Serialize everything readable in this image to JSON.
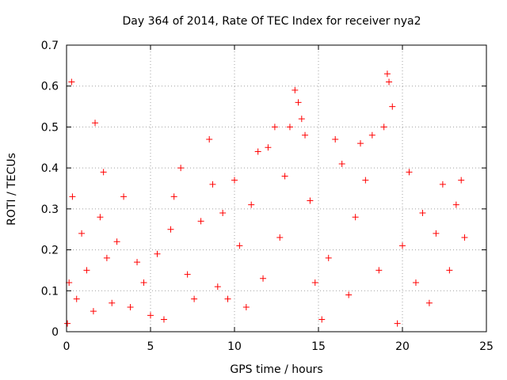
{
  "chart_data": {
    "type": "scatter",
    "title": "Day 364 of 2014, Rate Of TEC Index for receiver nya2",
    "xlabel": "GPS time / hours",
    "ylabel": "ROTI / TECUs",
    "xlim": [
      0,
      25
    ],
    "ylim": [
      0,
      0.7
    ],
    "xticks": [
      "0",
      "5",
      "10",
      "15",
      "20",
      "25"
    ],
    "yticks": [
      "0",
      "0.1",
      "0.2",
      "0.3",
      "0.4",
      "0.5",
      "0.6",
      "0.7"
    ],
    "grid": true,
    "marker": "+",
    "color": "#ff0000",
    "series": [
      {
        "x": [
          0.05,
          0.15,
          0.3,
          0.35,
          0.6,
          0.9,
          1.2,
          1.6,
          1.7,
          2.0,
          2.2,
          2.4,
          2.7,
          3.0,
          3.4,
          3.8,
          4.2,
          4.6,
          5.0,
          5.4,
          5.8,
          6.2,
          6.4,
          6.8,
          7.2,
          7.6,
          8.0,
          8.5,
          8.7,
          9.0,
          9.3,
          9.6,
          10.0,
          10.3,
          10.7,
          11.0,
          11.4,
          11.7,
          12.0,
          12.4,
          12.7,
          13.0,
          13.3,
          13.6,
          13.8,
          14.0,
          14.2,
          14.5,
          14.8,
          15.2,
          15.6,
          16.0,
          16.4,
          16.8,
          17.2,
          17.5,
          17.8,
          18.2,
          18.6,
          18.9,
          19.1,
          19.2,
          19.4,
          19.7,
          20.0,
          20.4,
          20.8,
          21.2,
          21.6,
          22.0,
          22.4,
          22.8,
          23.2,
          23.5,
          23.7
        ],
        "y": [
          0.02,
          0.12,
          0.61,
          0.33,
          0.08,
          0.24,
          0.15,
          0.05,
          0.51,
          0.28,
          0.39,
          0.18,
          0.07,
          0.22,
          0.33,
          0.06,
          0.17,
          0.12,
          0.04,
          0.19,
          0.03,
          0.25,
          0.33,
          0.4,
          0.14,
          0.08,
          0.27,
          0.47,
          0.36,
          0.11,
          0.29,
          0.08,
          0.37,
          0.21,
          0.06,
          0.31,
          0.44,
          0.13,
          0.45,
          0.5,
          0.23,
          0.38,
          0.5,
          0.59,
          0.56,
          0.52,
          0.48,
          0.32,
          0.12,
          0.03,
          0.18,
          0.47,
          0.41,
          0.09,
          0.28,
          0.46,
          0.37,
          0.48,
          0.15,
          0.5,
          0.63,
          0.61,
          0.55,
          0.02,
          0.21,
          0.39,
          0.12,
          0.29,
          0.07,
          0.24,
          0.36,
          0.15,
          0.31,
          0.37,
          0.23
        ]
      }
    ]
  }
}
